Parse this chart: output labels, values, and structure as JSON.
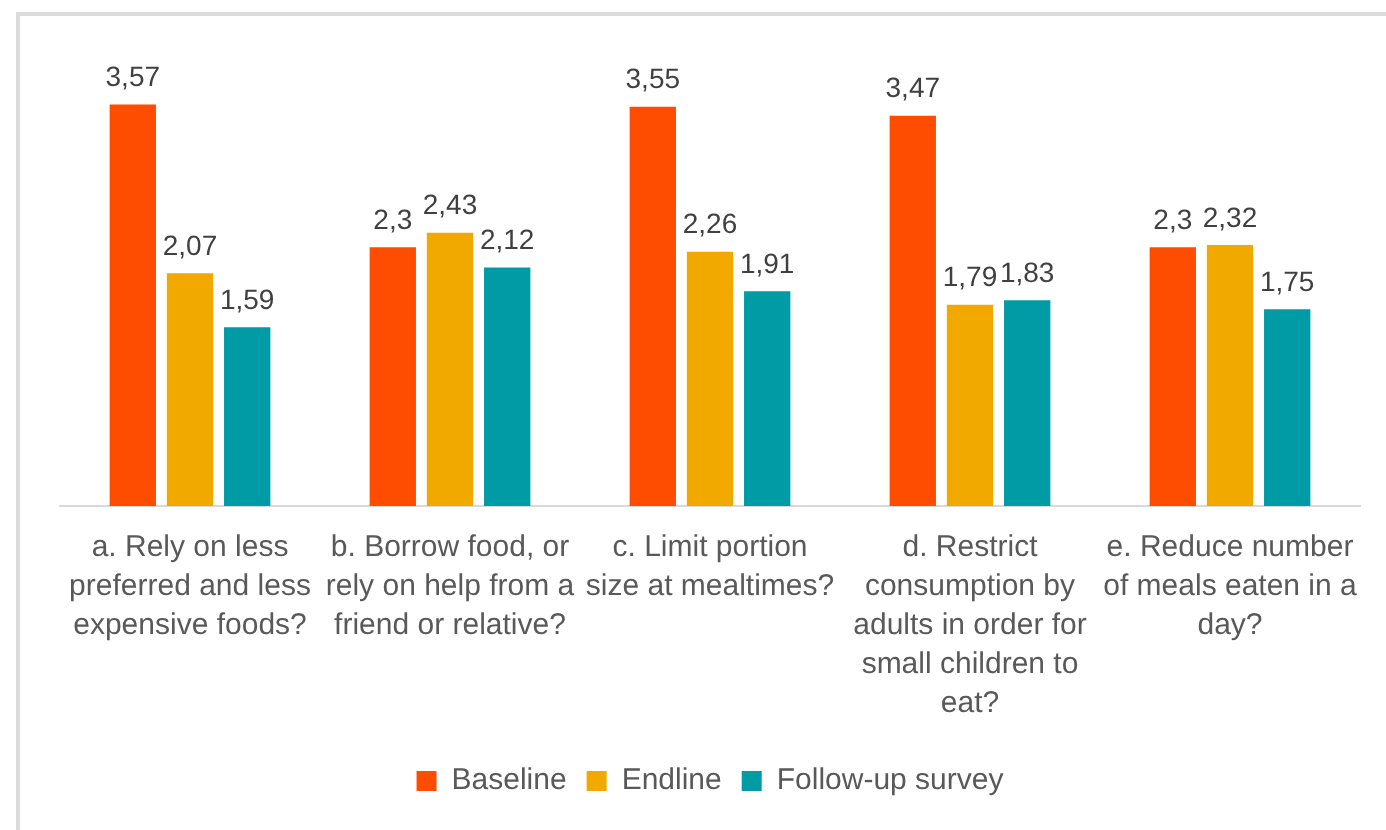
{
  "chart_data": {
    "type": "bar",
    "categories": [
      "a. Rely on less preferred and less expensive foods?",
      "b. Borrow food, or rely on help from a friend or relative?",
      "c. Limit portion size at mealtimes?",
      "d. Restrict consumption by adults in order for small children to eat?",
      "e. Reduce number of meals eaten in a day?"
    ],
    "series": [
      {
        "name": "Baseline",
        "color": "#fe4c01",
        "values": [
          3.57,
          2.3,
          3.55,
          3.47,
          2.3
        ],
        "value_labels": [
          "3,57",
          "2,3",
          "3,55",
          "3,47",
          "2,3"
        ]
      },
      {
        "name": "Endline",
        "color": "#f1a900",
        "values": [
          2.07,
          2.43,
          2.26,
          1.79,
          2.32
        ],
        "value_labels": [
          "2,07",
          "2,43",
          "2,26",
          "1,79",
          "2,32"
        ]
      },
      {
        "name": "Follow-up survey",
        "color": "#009ba5",
        "values": [
          1.59,
          2.12,
          1.91,
          1.83,
          1.75
        ],
        "value_labels": [
          "1,59",
          "2,12",
          "1,91",
          "1,83",
          "1,75"
        ]
      }
    ],
    "legend": "bottom",
    "tick_labels": "x"
  }
}
